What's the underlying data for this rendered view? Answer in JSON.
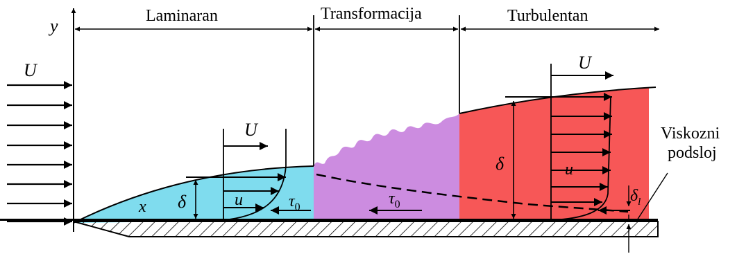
{
  "regions": {
    "laminar": "Laminaran",
    "transition": "Transformacija",
    "turbulent": "Turbulentan"
  },
  "axis": {
    "y": "y",
    "x": "x"
  },
  "symbols": {
    "free_stream": "U",
    "laminar_velocity_label": "U",
    "turbulent_velocity_label": "U",
    "velocity_u_laminar": "u",
    "velocity_u_turbulent": "u",
    "delta_laminar": "δ",
    "delta_turbulent": "δ",
    "tau_laminar": "τ",
    "tau_transition": "τ",
    "tau_subscript": "0",
    "delta_l": "δ",
    "delta_l_subscript": "l"
  },
  "annotations": {
    "viscous_sublayer_line1": "Viskozni",
    "viscous_sublayer_line2": "podsloj"
  },
  "colors": {
    "laminar_fill": "#7fdcee",
    "transition_fill": "#cc8ce0",
    "turbulent_fill": "#f75757",
    "ink": "#000000"
  }
}
